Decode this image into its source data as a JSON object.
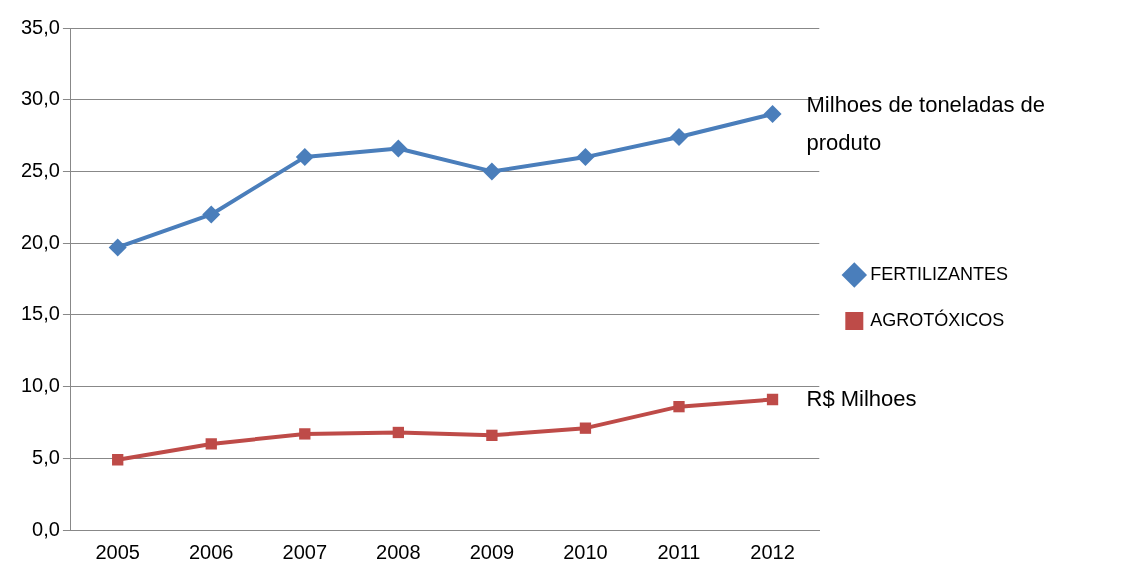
{
  "chart_data": {
    "type": "line",
    "categories": [
      "2005",
      "2006",
      "2007",
      "2008",
      "2009",
      "2010",
      "2011",
      "2012"
    ],
    "series": [
      {
        "name": "FERTILIZANTES",
        "color": "#4a7ebb",
        "marker": "diamond",
        "values": [
          19.7,
          22.0,
          26.0,
          26.6,
          25.0,
          26.0,
          27.4,
          29.0
        ]
      },
      {
        "name": "AGROTÓXICOS",
        "color": "#be4b48",
        "marker": "square",
        "values": [
          4.9,
          6.0,
          6.7,
          6.8,
          6.6,
          7.1,
          8.6,
          9.1
        ]
      }
    ],
    "ylim": [
      0,
      35
    ],
    "yticks": [
      {
        "value": 0,
        "label": "0,0"
      },
      {
        "value": 5,
        "label": "5,0"
      },
      {
        "value": 10,
        "label": "10,0"
      },
      {
        "value": 15,
        "label": "15,0"
      },
      {
        "value": 20,
        "label": "20,0"
      },
      {
        "value": 25,
        "label": "25,0"
      },
      {
        "value": 30,
        "label": "30,0"
      },
      {
        "value": 35,
        "label": "35,0"
      }
    ],
    "grid": "y",
    "legend": "right",
    "line_style": "solid",
    "annotations": [
      {
        "text": "Milhoes de toneladas de produto",
        "x": "2012",
        "y": 29.0
      },
      {
        "text": "R$ Milhoes",
        "x": "2012",
        "y": 9.1
      }
    ]
  }
}
